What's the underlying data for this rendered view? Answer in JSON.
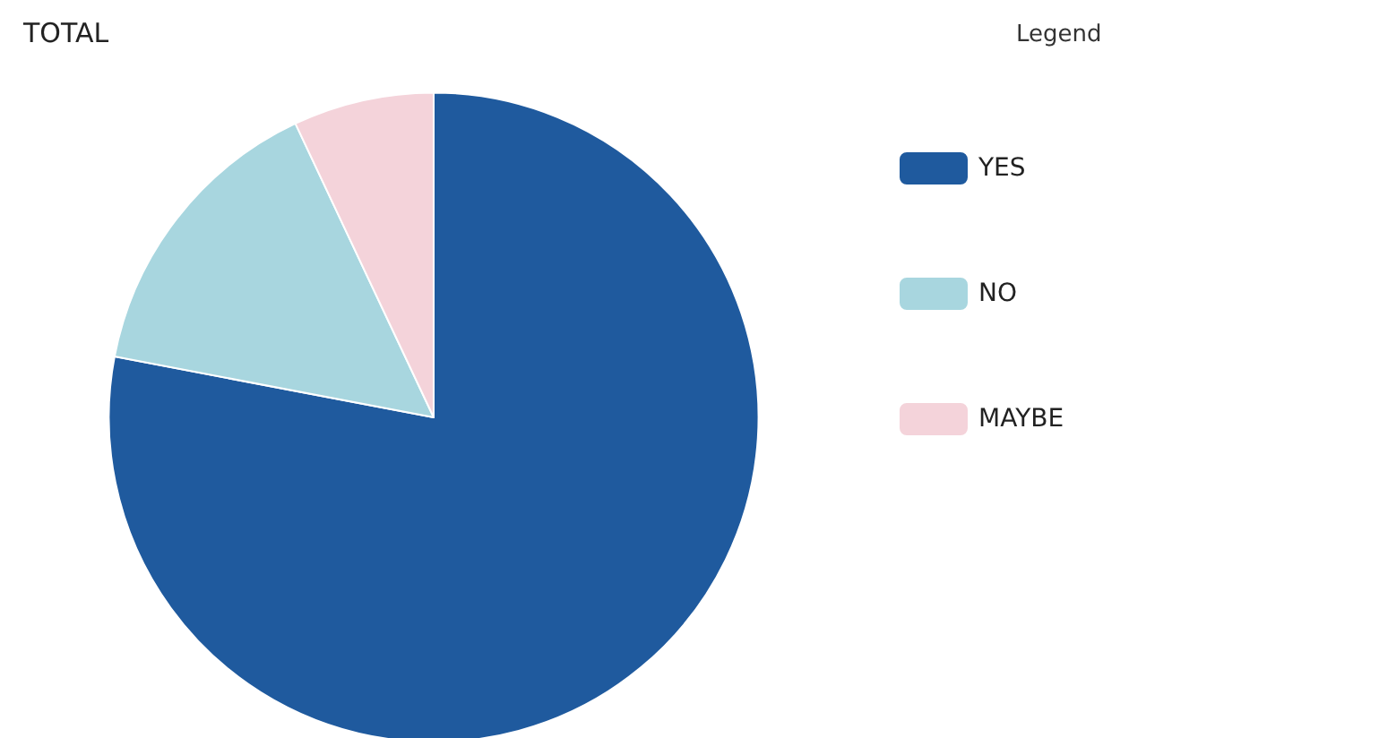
{
  "chart_data": {
    "type": "pie",
    "title": "TOTAL",
    "legend_title": "Legend",
    "legend": "right",
    "categories": [
      "YES",
      "NO",
      "MAYBE"
    ],
    "values": [
      78,
      15,
      7
    ],
    "colors": [
      "#1f5a9e",
      "#a8d6df",
      "#f4d3da"
    ]
  }
}
